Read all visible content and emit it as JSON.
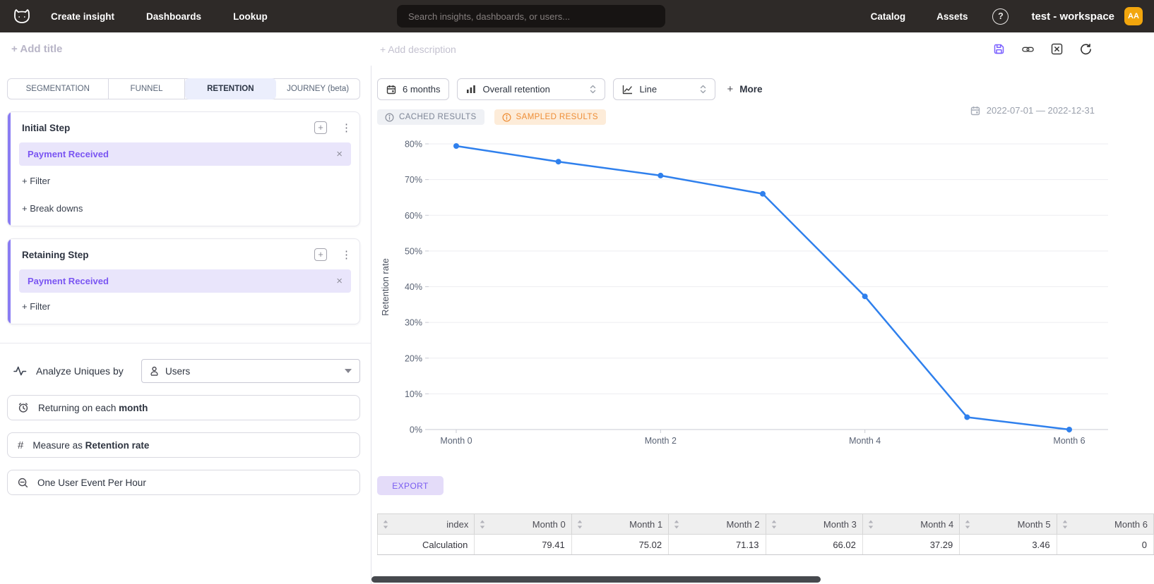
{
  "nav": {
    "items": [
      {
        "label": "Create insight"
      },
      {
        "label": "Dashboards"
      },
      {
        "label": "Lookup"
      }
    ],
    "search_placeholder": "Search insights, dashboards, or users...",
    "right_items": [
      {
        "label": "Catalog"
      },
      {
        "label": "Assets"
      }
    ],
    "help_glyph": "?",
    "workspace_name": "test - workspace",
    "avatar_initials": "AA"
  },
  "header": {
    "add_title": "+ Add title",
    "add_description": "+ Add description"
  },
  "sidebar": {
    "tabs": [
      {
        "label": "SEGMENTATION",
        "active": false
      },
      {
        "label": "FUNNEL",
        "active": false
      },
      {
        "label": "RETENTION",
        "active": true
      },
      {
        "label": "JOURNEY (beta)",
        "active": false
      }
    ],
    "initial_step": {
      "title": "Initial Step",
      "event": "Payment Received",
      "filter": "+ Filter",
      "breakdowns": "+ Break downs"
    },
    "retaining_step": {
      "title": "Retaining Step",
      "event": "Payment Received",
      "filter": "+ Filter"
    },
    "analyze": {
      "label": "Analyze Uniques by",
      "value": "Users"
    },
    "options": [
      {
        "prefix": "Returning on each ",
        "bold": "month",
        "icon": "clock-icon"
      },
      {
        "prefix": "Measure as ",
        "bold": "Retention rate",
        "icon": "hash-icon"
      },
      {
        "prefix": "One User Event Per Hour",
        "bold": "",
        "icon": "zoom-out-icon"
      }
    ]
  },
  "toolbar": {
    "date_range_button": "6 months",
    "retention_type": "Overall retention",
    "chart_type": "Line",
    "more_plus": "+",
    "more_label": "More"
  },
  "status": {
    "cached": "CACHED RESULTS",
    "sampled": "SAMPLED RESULTS",
    "date_range": "2022-07-01 — 2022-12-31"
  },
  "export_label": "EXPORT",
  "chart_data": {
    "type": "line",
    "x": [
      "Month 0",
      "Month 1",
      "Month 2",
      "Month 3",
      "Month 4",
      "Month 5",
      "Month 6"
    ],
    "x_axis_labels_shown": [
      "Month 0",
      "Month 2",
      "Month 4",
      "Month 6"
    ],
    "series": [
      {
        "name": "Retention rate",
        "values": [
          79.41,
          75.02,
          71.13,
          66.02,
          37.29,
          3.46,
          0
        ]
      }
    ],
    "ylabel": "Retention rate",
    "yticks_percent": [
      0,
      10,
      20,
      30,
      40,
      50,
      60,
      70,
      80
    ],
    "ylim": [
      0,
      85
    ],
    "grid": true,
    "legend": false,
    "line_color": "#2f80ed"
  },
  "table": {
    "headers": [
      "index",
      "Month 0",
      "Month 1",
      "Month 2",
      "Month 3",
      "Month 4",
      "Month 5",
      "Month 6"
    ],
    "rows": [
      [
        "Calculation",
        "79.41",
        "75.02",
        "71.13",
        "66.02",
        "37.29",
        "3.46",
        "0"
      ]
    ]
  },
  "colors": {
    "topnav_bg": "#2e2a28",
    "accent_purple": "#7a5cf5",
    "chip_bg": "#e9e5fb",
    "active_tab_bg": "#ebeefc",
    "avatar_bg": "#f2a60d",
    "cached_color": "#7e8697",
    "sampled_color": "#ee8d35",
    "line_color": "#2f80ed",
    "export_bg": "#e4dcf9"
  }
}
